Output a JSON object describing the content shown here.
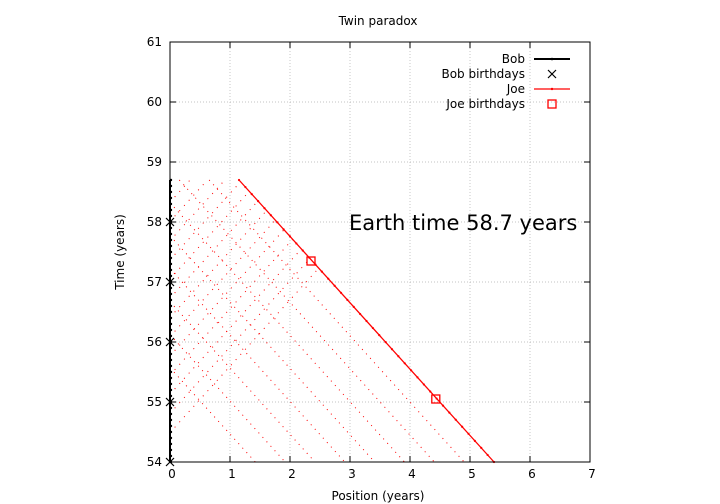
{
  "chart_data": {
    "type": "line",
    "title": "Twin paradox",
    "xlabel": "Position (years)",
    "ylabel": "Time (years)",
    "xlim": [
      0,
      7
    ],
    "ylim": [
      54,
      61
    ],
    "xticks": [
      0,
      1,
      2,
      3,
      4,
      5,
      6,
      7
    ],
    "yticks": [
      54,
      55,
      56,
      57,
      58,
      59,
      60,
      61
    ],
    "grid": true,
    "legend_position": "top-right",
    "annotation": "Earth time 58.7 years",
    "colors": {
      "bob": "#000000",
      "joe": "#ff0000",
      "grid": "#b0b0b0"
    },
    "series": [
      {
        "name": "Bob",
        "style": "line-points",
        "x": [
          0,
          0
        ],
        "y": [
          54,
          58.7
        ]
      },
      {
        "name": "Bob birthdays",
        "style": "cross",
        "x": [
          0,
          0,
          0,
          0,
          0
        ],
        "y": [
          54,
          55,
          56,
          57,
          58
        ]
      },
      {
        "name": "Joe",
        "style": "line-points",
        "x": [
          1.15,
          5.4
        ],
        "y": [
          58.7,
          54
        ]
      },
      {
        "name": "Joe birthdays",
        "style": "square",
        "x": [
          2.35,
          4.43
        ],
        "y": [
          57.35,
          55.05
        ]
      }
    ]
  }
}
